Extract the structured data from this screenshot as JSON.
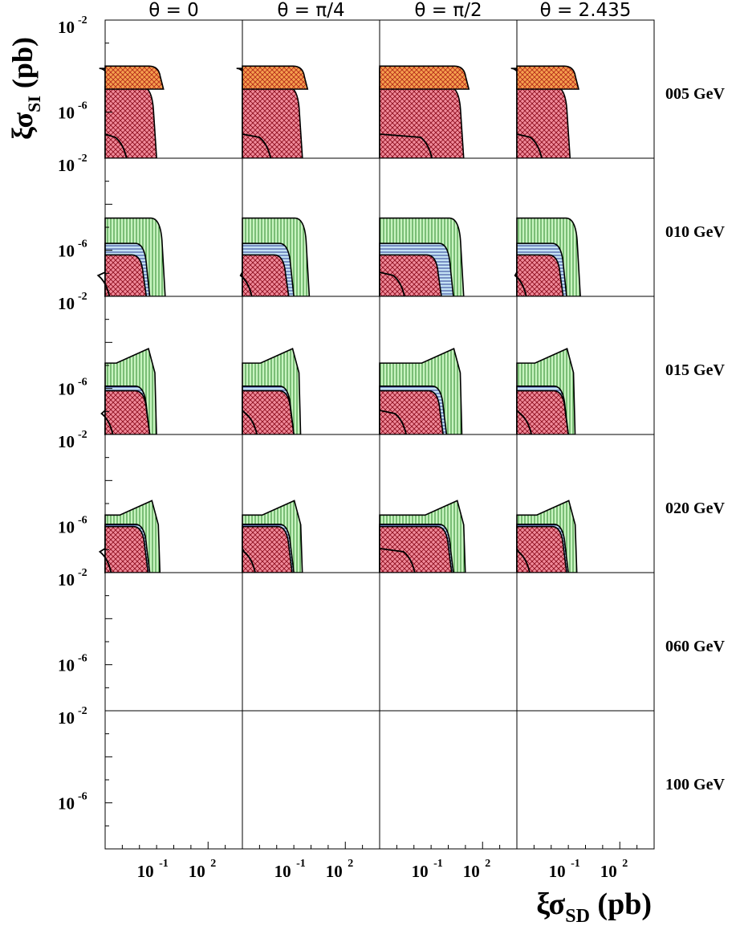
{
  "chart_data": {
    "type": "area",
    "title": "",
    "xlabel": "ξσ_SD (pb)",
    "ylabel": "ξσ_SI (pb)",
    "x_axis": {
      "label_main": "ξσ",
      "label_sub": "SD",
      "label_unit": " (pb)",
      "scale": "log",
      "range_exponent": [
        -4,
        4
      ],
      "tick_labels": [
        {
          "base": "10",
          "exp": "-1",
          "value_exponent": -1
        },
        {
          "base": "10",
          "exp": "2",
          "value_exponent": 2
        }
      ]
    },
    "y_axis": {
      "label_main": "ξσ",
      "label_sub": "SI",
      "label_unit": " (pb)",
      "scale": "log",
      "range_exponent": [
        -8,
        -2
      ],
      "tick_labels": [
        {
          "base": "10",
          "exp": "-2",
          "value_exponent": -2
        },
        {
          "base": "10",
          "exp": "-6",
          "value_exponent": -6
        }
      ]
    },
    "columns": [
      "θ = 0",
      "θ = π/4",
      "θ = π/2",
      "θ = 2.435"
    ],
    "rows": [
      "005 GeV",
      "010 GeV",
      "015 GeV",
      "020 GeV",
      "060 GeV",
      "100 GeV"
    ],
    "legend": "none",
    "grid": false,
    "series_styles": [
      {
        "key": "orange",
        "fill": "#f5a04d",
        "hatch": "cross",
        "stroke": "#a00000"
      },
      {
        "key": "green",
        "fill": "#c8f4c0",
        "hatch": "vertical",
        "stroke": "#000000"
      },
      {
        "key": "blue",
        "fill": "#c4e2f4",
        "hatch": "horizontal",
        "stroke": "#000080"
      },
      {
        "key": "red",
        "fill": "#f08a9a",
        "hatch": "cross",
        "stroke": "#a00000"
      }
    ],
    "panels": [
      [
        {
          "regions": [
            {
              "style": "blue",
              "top": -4.1,
              "bottom": -8,
              "right": -3.5,
              "curve": "corner"
            },
            {
              "style": "red",
              "top": -4.9,
              "bottom": -8,
              "right": -1.0,
              "curve": "corner"
            },
            {
              "style": "orange",
              "top": -4.0,
              "bottom": -5.0,
              "right": -0.6,
              "curve": "corner"
            }
          ]
        },
        {
          "regions": [
            {
              "style": "blue",
              "top": -4.1,
              "bottom": -8,
              "right": -3.5,
              "curve": "corner"
            },
            {
              "style": "red",
              "top": -4.9,
              "bottom": -8,
              "right": -0.5,
              "curve": "corner"
            },
            {
              "style": "orange",
              "top": -4.0,
              "bottom": -5.0,
              "right": -0.2,
              "curve": "corner"
            }
          ]
        },
        {
          "regions": [
            {
              "style": "blue",
              "top": -4.1,
              "bottom": -8,
              "right": -0.6,
              "curve": "corner"
            },
            {
              "style": "red",
              "top": -4.9,
              "bottom": -8,
              "right": 0.9,
              "curve": "corner"
            },
            {
              "style": "orange",
              "top": -4.0,
              "bottom": -5.0,
              "right": 1.2,
              "curve": "corner"
            }
          ]
        },
        {
          "regions": [
            {
              "style": "blue",
              "top": -4.1,
              "bottom": -8,
              "right": -3.5,
              "curve": "corner"
            },
            {
              "style": "red",
              "top": -4.9,
              "bottom": -8,
              "right": -0.9,
              "curve": "corner"
            },
            {
              "style": "orange",
              "top": -4.0,
              "bottom": -5.0,
              "right": -0.4,
              "curve": "corner"
            }
          ]
        }
      ],
      [
        {
          "regions": [
            {
              "style": "green",
              "top": -4.6,
              "bottom": -8,
              "right": -0.5,
              "curve": "corner"
            },
            {
              "style": "blue",
              "top": -5.7,
              "bottom": -8,
              "right": -1.4,
              "curve": "corner"
            },
            {
              "style": "red",
              "top": -6.2,
              "bottom": -8,
              "right": -1.6,
              "curve": "corner"
            }
          ]
        },
        {
          "regions": [
            {
              "style": "green",
              "top": -4.6,
              "bottom": -8,
              "right": -0.1,
              "curve": "corner"
            },
            {
              "style": "blue",
              "top": -5.7,
              "bottom": -8,
              "right": -1.0,
              "curve": "corner"
            },
            {
              "style": "red",
              "top": -6.2,
              "bottom": -8,
              "right": -1.3,
              "curve": "corner"
            }
          ]
        },
        {
          "regions": [
            {
              "style": "green",
              "top": -4.6,
              "bottom": -8,
              "right": 0.9,
              "curve": "corner"
            },
            {
              "style": "blue",
              "top": -5.7,
              "bottom": -8,
              "right": 0.3,
              "curve": "corner"
            },
            {
              "style": "red",
              "top": -6.2,
              "bottom": -8,
              "right": -0.4,
              "curve": "corner"
            }
          ]
        },
        {
          "regions": [
            {
              "style": "green",
              "top": -4.6,
              "bottom": -8,
              "right": -0.3,
              "curve": "corner"
            },
            {
              "style": "blue",
              "top": -5.7,
              "bottom": -8,
              "right": -1.1,
              "curve": "corner"
            },
            {
              "style": "red",
              "top": -6.2,
              "bottom": -8,
              "right": -1.3,
              "curve": "corner"
            }
          ]
        }
      ],
      [
        {
          "regions": [
            {
              "style": "green",
              "top": -4.9,
              "bottom": -8,
              "right": -1.1,
              "curve": "spike"
            },
            {
              "style": "blue",
              "top": -5.9,
              "bottom": -8,
              "right": -1.4,
              "curve": "corner"
            },
            {
              "style": "red",
              "top": -6.1,
              "bottom": -8,
              "right": -1.4,
              "curve": "corner"
            }
          ]
        },
        {
          "regions": [
            {
              "style": "green",
              "top": -4.9,
              "bottom": -8,
              "right": -0.7,
              "curve": "spike"
            },
            {
              "style": "blue",
              "top": -5.9,
              "bottom": -8,
              "right": -1.0,
              "curve": "corner"
            },
            {
              "style": "red",
              "top": -6.1,
              "bottom": -8,
              "right": -1.0,
              "curve": "corner"
            }
          ]
        },
        {
          "regions": [
            {
              "style": "green",
              "top": -4.9,
              "bottom": -8,
              "right": 0.7,
              "curve": "spike"
            },
            {
              "style": "blue",
              "top": -5.9,
              "bottom": -8,
              "right": -0.1,
              "curve": "corner"
            },
            {
              "style": "red",
              "top": -6.1,
              "bottom": -8,
              "right": -0.3,
              "curve": "corner"
            }
          ]
        },
        {
          "regions": [
            {
              "style": "green",
              "top": -4.9,
              "bottom": -8,
              "right": -0.7,
              "curve": "spike"
            },
            {
              "style": "blue",
              "top": -5.9,
              "bottom": -8,
              "right": -1.0,
              "curve": "corner"
            },
            {
              "style": "red",
              "top": -6.1,
              "bottom": -8,
              "right": -1.0,
              "curve": "corner"
            }
          ]
        }
      ],
      [
        {
          "regions": [
            {
              "style": "green",
              "top": -5.5,
              "bottom": -8,
              "right": -0.9,
              "curve": "spike"
            },
            {
              "style": "blue",
              "top": -5.9,
              "bottom": -8,
              "right": -1.4,
              "curve": "corner"
            },
            {
              "style": "red",
              "top": -6.0,
              "bottom": -8,
              "right": -1.5,
              "curve": "corner"
            }
          ]
        },
        {
          "regions": [
            {
              "style": "green",
              "top": -5.5,
              "bottom": -8,
              "right": -0.6,
              "curve": "spike"
            },
            {
              "style": "blue",
              "top": -5.9,
              "bottom": -8,
              "right": -1.0,
              "curve": "corner"
            },
            {
              "style": "red",
              "top": -6.0,
              "bottom": -8,
              "right": -1.1,
              "curve": "corner"
            }
          ]
        },
        {
          "regions": [
            {
              "style": "green",
              "top": -5.5,
              "bottom": -8,
              "right": 0.9,
              "curve": "spike"
            },
            {
              "style": "blue",
              "top": -5.9,
              "bottom": -8,
              "right": 0.3,
              "curve": "corner"
            },
            {
              "style": "red",
              "top": -6.0,
              "bottom": -8,
              "right": 0.2,
              "curve": "corner"
            }
          ]
        },
        {
          "regions": [
            {
              "style": "green",
              "top": -5.5,
              "bottom": -8,
              "right": -0.6,
              "curve": "spike"
            },
            {
              "style": "blue",
              "top": -5.9,
              "bottom": -8,
              "right": -1.0,
              "curve": "corner"
            },
            {
              "style": "red",
              "top": -6.0,
              "bottom": -8,
              "right": -1.1,
              "curve": "corner"
            }
          ]
        }
      ]
    ]
  }
}
